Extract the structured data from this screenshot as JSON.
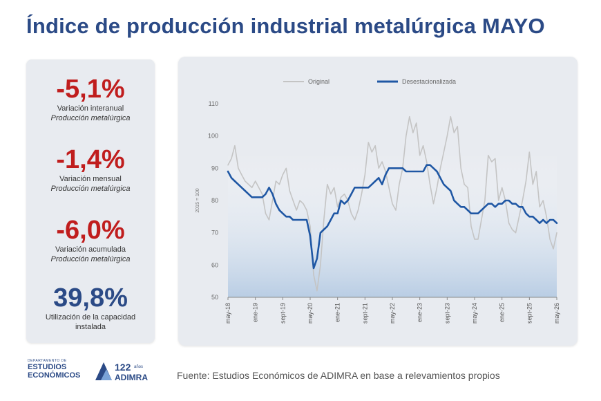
{
  "header": {
    "title": "Índice de producción industrial metalúrgica MAYO"
  },
  "kpis": [
    {
      "value": "-5,1%",
      "line1": "Variación interanual",
      "line2": "Producción metalúrgica",
      "color": "#c01d1d"
    },
    {
      "value": "-1,4%",
      "line1": "Variación mensual",
      "line2": "Producción metalúrgica",
      "color": "#c01d1d"
    },
    {
      "value": "-6,0%",
      "line1": "Variación acumulada",
      "line2": "Producción metalúrgica",
      "color": "#c01d1d"
    },
    {
      "value": "39,8%",
      "line1": "Utilización de la capacidad",
      "line2": "instalada",
      "color": "#2b4a86"
    }
  ],
  "footer": {
    "dept_small": "DEPARTAMENTO DE",
    "dept_line1": "ESTUDIOS",
    "dept_line2": "ECONÓMICOS",
    "adimra_years": "122",
    "adimra_years_word": "años",
    "adimra_name": "ADIMRA",
    "source": "Fuente: Estudios Económicos de ADIMRA en base a relevamientos propios"
  },
  "colors": {
    "accent": "#2b4a86",
    "negative": "#c01d1d",
    "original_line": "#c4c4c4",
    "seasonal_line": "#1f57a4",
    "card_bg": "#e8ebf0"
  },
  "chart_data": {
    "type": "line",
    "ylabel": "2015 = 100",
    "ylim": [
      50,
      110
    ],
    "yticks": [
      50,
      60,
      70,
      80,
      90,
      100,
      110
    ],
    "legend_position": "top",
    "grid": false,
    "xticks": [
      {
        "label": "may-18",
        "index": 0
      },
      {
        "label": "ene-19",
        "index": 8
      },
      {
        "label": "sept-19",
        "index": 16
      },
      {
        "label": "may-20",
        "index": 24
      },
      {
        "label": "ene-21",
        "index": 32
      },
      {
        "label": "sept-21",
        "index": 40
      },
      {
        "label": "may-22",
        "index": 48
      },
      {
        "label": "ene-23",
        "index": 56
      },
      {
        "label": "sept-23",
        "index": 64
      },
      {
        "label": "may-24",
        "index": 72
      },
      {
        "label": "ene-25",
        "index": 80
      },
      {
        "label": "sept-25",
        "index": 88
      },
      {
        "label": "may-26",
        "index": 96
      }
    ],
    "series": [
      {
        "name": "Original",
        "color": "#c4c4c4",
        "values": [
          91,
          93,
          97,
          90,
          88,
          86,
          85,
          84,
          86,
          84,
          82,
          76,
          74,
          80,
          86,
          85,
          88,
          90,
          83,
          80,
          77,
          80,
          79,
          77,
          72,
          57,
          52,
          60,
          74,
          85,
          82,
          84,
          78,
          81,
          82,
          80,
          76,
          74,
          77,
          82,
          88,
          98,
          95,
          97,
          90,
          92,
          89,
          84,
          79,
          77,
          85,
          90,
          100,
          106,
          101,
          104,
          94,
          97,
          92,
          85,
          79,
          84,
          90,
          95,
          100,
          106,
          101,
          103,
          90,
          85,
          84,
          72,
          68,
          68,
          74,
          80,
          94,
          92,
          93,
          80,
          84,
          80,
          73,
          71,
          70,
          75,
          80,
          86,
          95,
          85,
          89,
          78,
          80,
          75,
          68,
          65,
          70
        ]
      },
      {
        "name": "Desestacionalizada",
        "color": "#1f57a4",
        "values": [
          89,
          87,
          86,
          85,
          84,
          83,
          82,
          81,
          81,
          81,
          81,
          82,
          84,
          82,
          79,
          77,
          76,
          75,
          75,
          74,
          74,
          74,
          74,
          74,
          69,
          59,
          62,
          70,
          71,
          72,
          74,
          76,
          76,
          80,
          79,
          80,
          82,
          84,
          84,
          84,
          84,
          84,
          85,
          86,
          87,
          85,
          88,
          90,
          90,
          90,
          90,
          90,
          89,
          89,
          89,
          89,
          89,
          89,
          91,
          91,
          90,
          89,
          87,
          85,
          84,
          83,
          80,
          79,
          78,
          78,
          77,
          76,
          76,
          76,
          77,
          78,
          79,
          79,
          78,
          79,
          79,
          80,
          80,
          79,
          79,
          78,
          78,
          76,
          75,
          75,
          74,
          73,
          74,
          73,
          74,
          74,
          73
        ]
      }
    ]
  }
}
